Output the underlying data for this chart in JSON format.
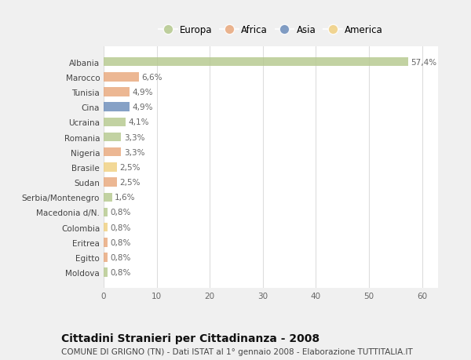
{
  "categories": [
    "Albania",
    "Marocco",
    "Tunisia",
    "Cina",
    "Ucraina",
    "Romania",
    "Nigeria",
    "Brasile",
    "Sudan",
    "Serbia/Montenegro",
    "Macedonia d/N.",
    "Colombia",
    "Eritrea",
    "Egitto",
    "Moldova"
  ],
  "values": [
    57.4,
    6.6,
    4.9,
    4.9,
    4.1,
    3.3,
    3.3,
    2.5,
    2.5,
    1.6,
    0.8,
    0.8,
    0.8,
    0.8,
    0.8
  ],
  "labels": [
    "57,4%",
    "6,6%",
    "4,9%",
    "4,9%",
    "4,1%",
    "3,3%",
    "3,3%",
    "2,5%",
    "2,5%",
    "1,6%",
    "0,8%",
    "0,8%",
    "0,8%",
    "0,8%",
    "0,8%"
  ],
  "colors": [
    "#b5c98e",
    "#e8a87c",
    "#e8a87c",
    "#6b8cba",
    "#b5c98e",
    "#b5c98e",
    "#e8a87c",
    "#f0d080",
    "#e8a87c",
    "#b5c98e",
    "#b5c98e",
    "#f0d080",
    "#e8a87c",
    "#e8a87c",
    "#b5c98e"
  ],
  "legend": [
    {
      "label": "Europa",
      "color": "#b5c98e"
    },
    {
      "label": "Africa",
      "color": "#e8a87c"
    },
    {
      "label": "Asia",
      "color": "#6b8cba"
    },
    {
      "label": "America",
      "color": "#f0d080"
    }
  ],
  "title": "Cittadini Stranieri per Cittadinanza - 2008",
  "subtitle": "COMUNE DI GRIGNO (TN) - Dati ISTAT al 1° gennaio 2008 - Elaborazione TUTTITALIA.IT",
  "xlim": [
    0,
    63
  ],
  "xticks": [
    0,
    10,
    20,
    30,
    40,
    50,
    60
  ],
  "background_color": "#f0f0f0",
  "plot_background": "#ffffff",
  "grid_color": "#dddddd",
  "bar_height": 0.6,
  "label_fontsize": 7.5,
  "tick_fontsize": 7.5,
  "title_fontsize": 10,
  "subtitle_fontsize": 7.5
}
